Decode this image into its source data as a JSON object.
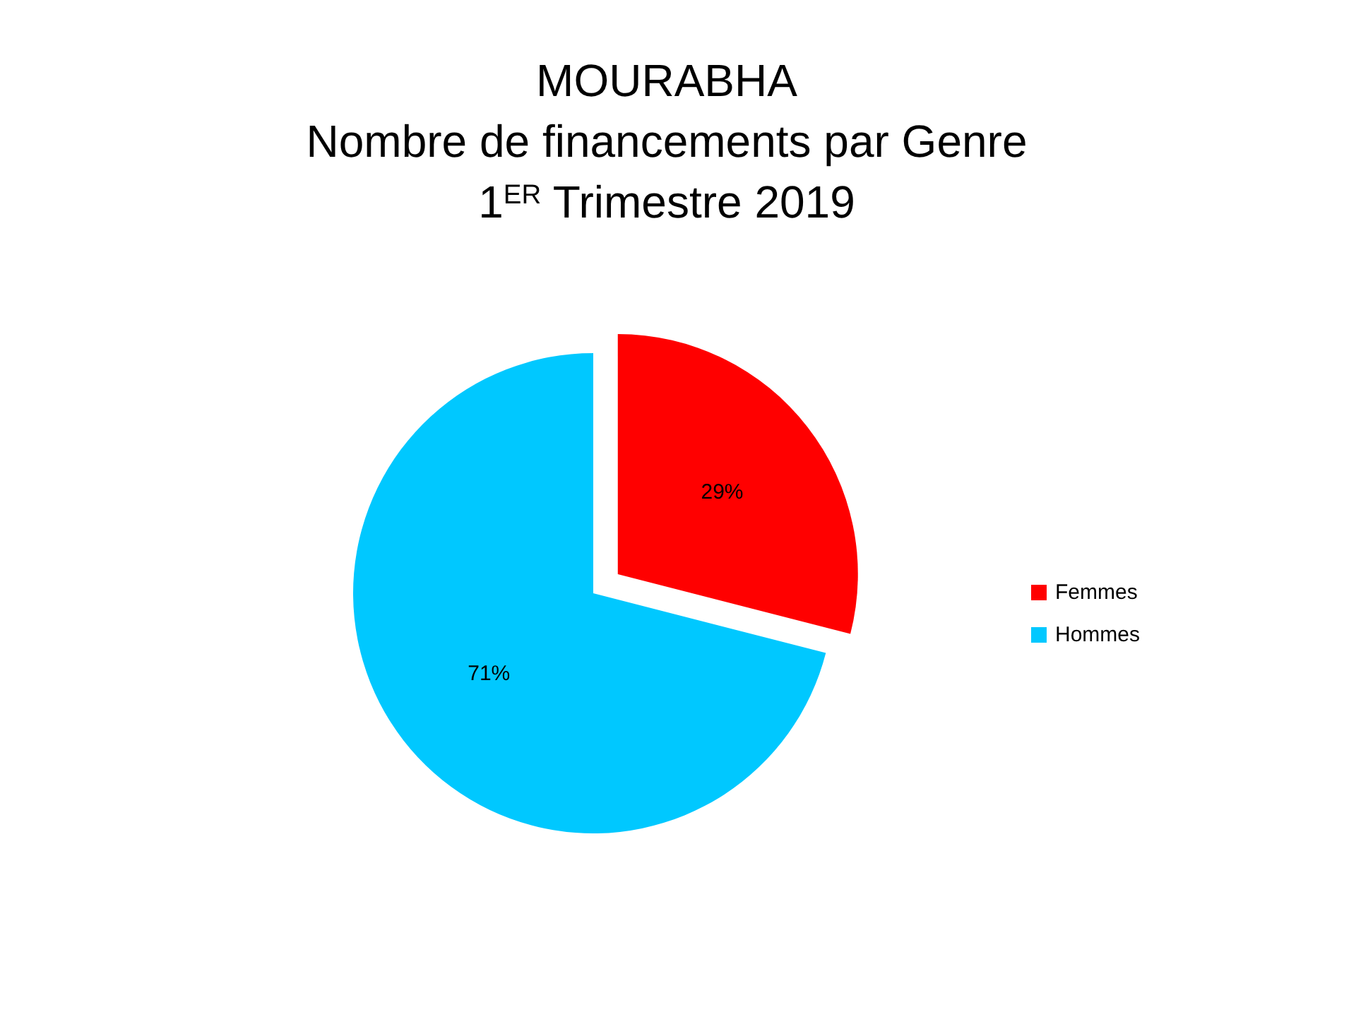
{
  "chart_data": {
    "type": "pie",
    "title": "MOURABHA\nNombre de financements par Genre\n1$^{ER}$ Trimestre 2019",
    "categories": [
      "Femmes",
      "Hommes"
    ],
    "values": [
      29,
      71
    ],
    "value_labels": [
      "29%",
      "71%"
    ],
    "colors": [
      "#ff0000",
      "#00c8ff"
    ],
    "legend": "right"
  }
}
